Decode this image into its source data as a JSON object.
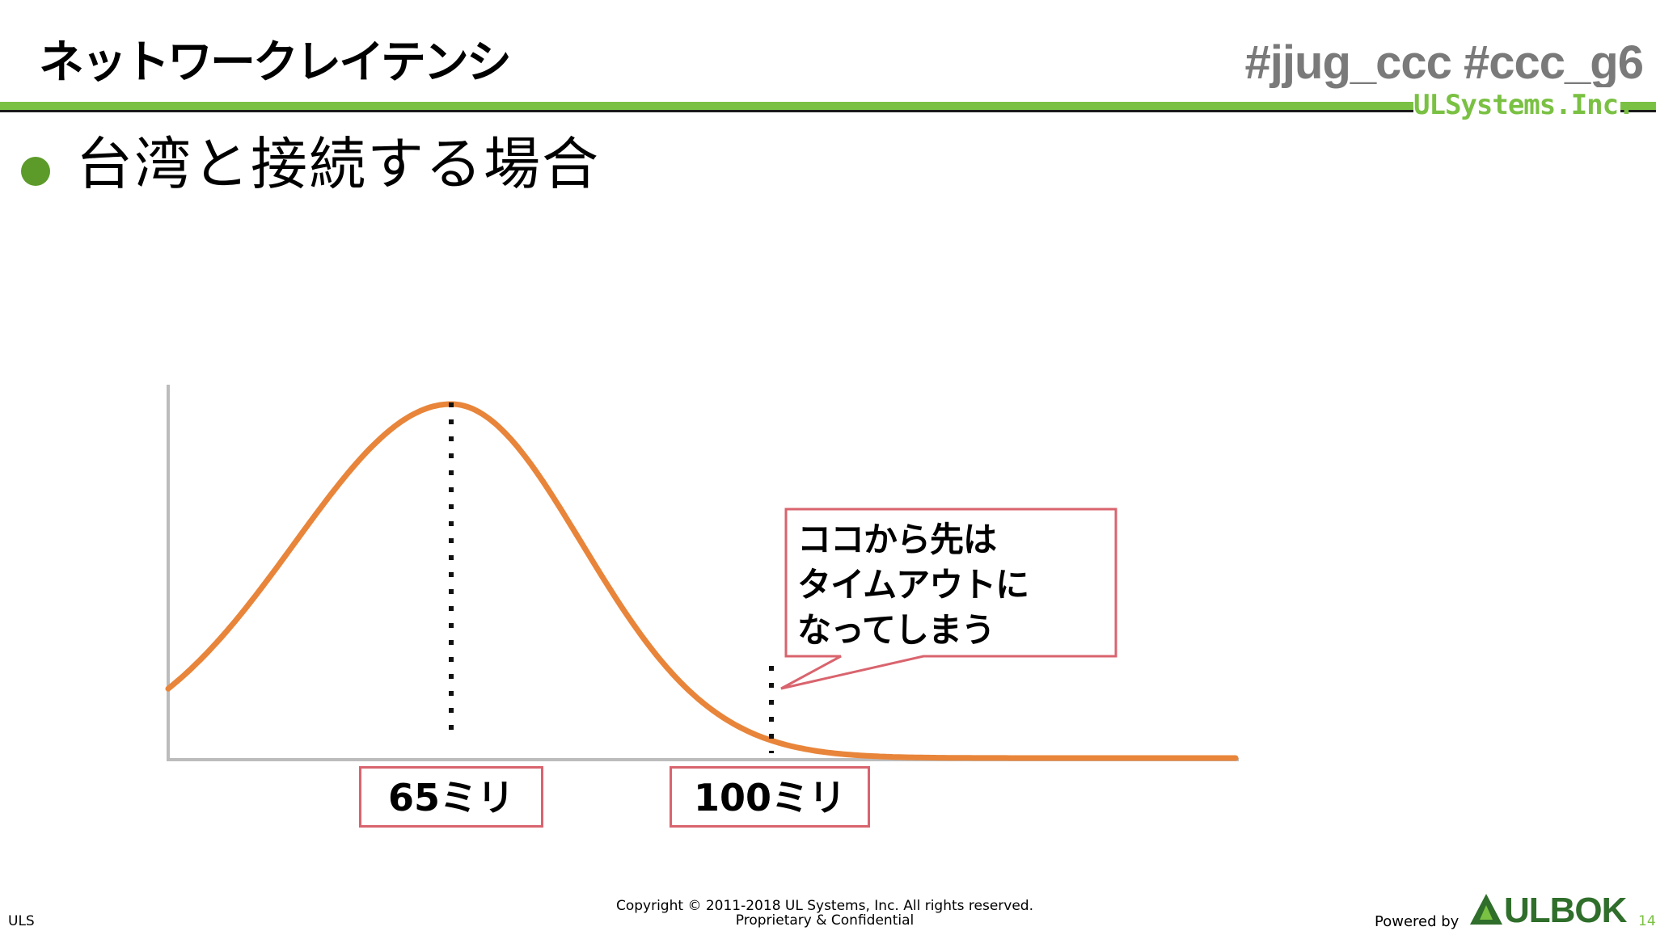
{
  "header": {
    "title": "ネットワークレイテンシ",
    "hashtags": "#jjug_ccc  #ccc_g6",
    "brand": "ULSystems.Inc."
  },
  "slide": {
    "heading": "台湾と接続する場合"
  },
  "chart_data": {
    "type": "area",
    "labels": [
      "65ミリ",
      "100ミリ"
    ],
    "annotation": "ココから先は\nタイムアウトに\nなってしまう",
    "peak_x": 65,
    "cutoff_x": 100,
    "colors": {
      "curve": "#e8853a",
      "axis": "#bcbcbc",
      "box": "#d9646e"
    }
  },
  "footer": {
    "left": "ULS",
    "copyright_line1": "Copyright © 2011-2018 UL Systems, Inc.  All rights reserved.",
    "copyright_line2": "Proprietary & Confidential",
    "powered_by": "Powered by",
    "ulbok": "ULBOK",
    "page": "14"
  }
}
